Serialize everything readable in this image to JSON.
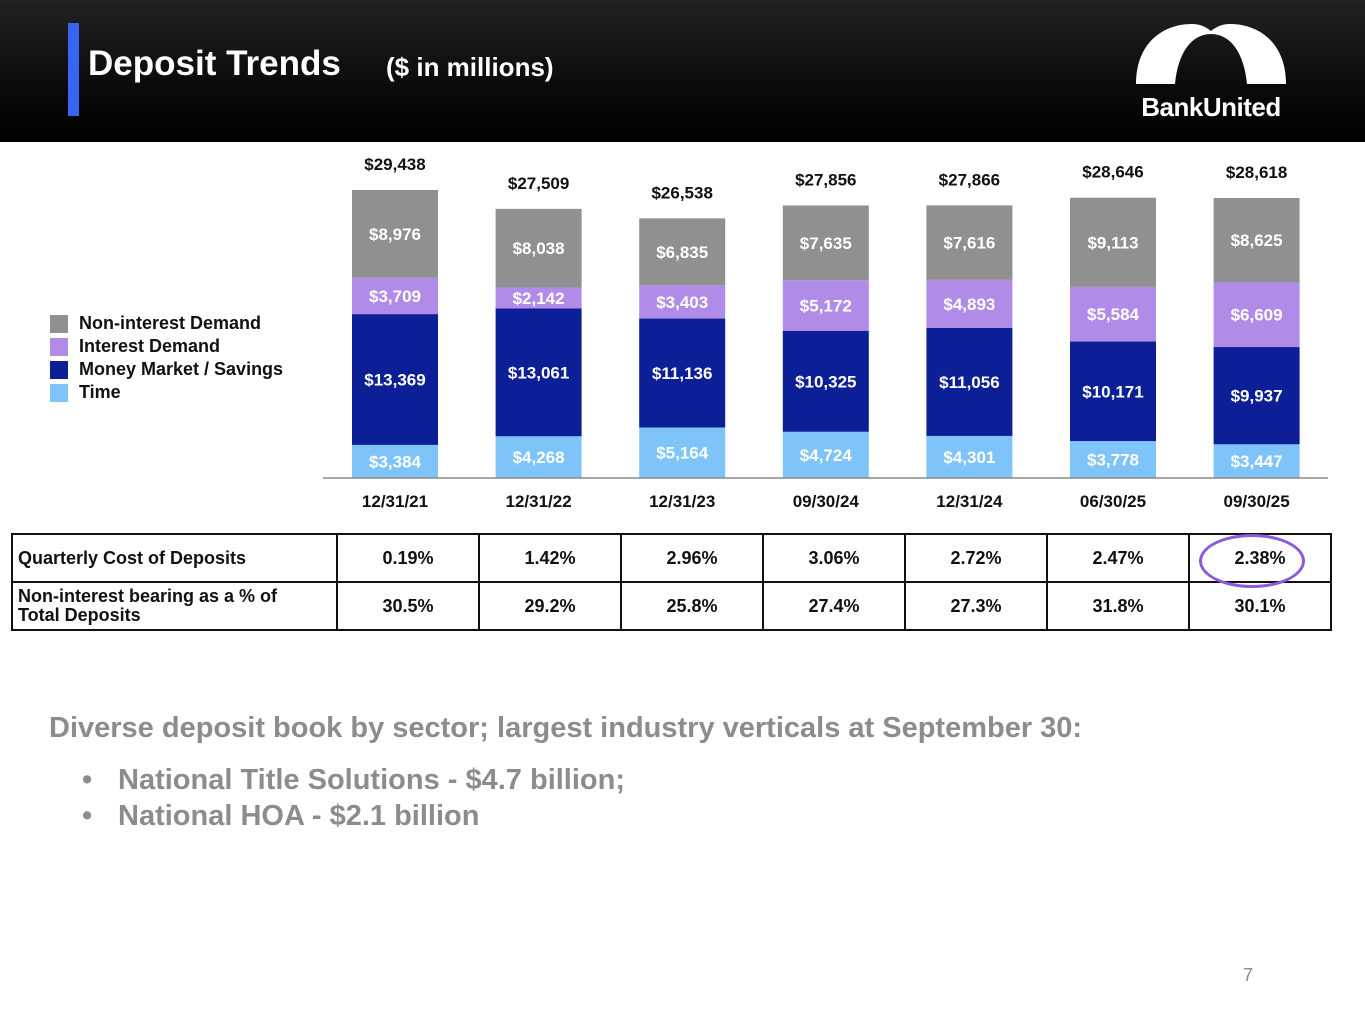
{
  "header": {
    "title": "Deposit Trends",
    "subtitle": "($ in millions)",
    "logo_text": "BankUnited",
    "accent_color": "#3a64f4"
  },
  "legend": [
    {
      "label": "Non-interest Demand",
      "color": "#909090"
    },
    {
      "label": "Interest Demand",
      "color": "#b08ce8"
    },
    {
      "label": "Money Market / Savings",
      "color": "#0c1f96"
    },
    {
      "label": "Time",
      "color": "#7fc4f8"
    }
  ],
  "chart_data": {
    "type": "bar",
    "stacked": true,
    "title": "Deposit Trends ($ in millions)",
    "xlabel": "",
    "ylabel": "",
    "legend_position": "left",
    "grid": false,
    "ylim": [
      0,
      30000
    ],
    "categories": [
      "12/31/21",
      "12/31/22",
      "12/31/23",
      "09/30/24",
      "12/31/24",
      "06/30/25",
      "09/30/25"
    ],
    "totals": [
      29438,
      27509,
      26538,
      27856,
      27866,
      28646,
      28618
    ],
    "total_labels": [
      "$29,438",
      "$27,509",
      "$26,538",
      "$27,856",
      "$27,866",
      "$28,646",
      "$28,618"
    ],
    "series": [
      {
        "name": "Time",
        "color": "#7fc4f8",
        "values": [
          3384,
          4268,
          5164,
          4724,
          4301,
          3778,
          3447
        ],
        "labels": [
          "$3,384",
          "$4,268",
          "$5,164",
          "$4,724",
          "$4,301",
          "$3,778",
          "$3,447"
        ]
      },
      {
        "name": "Money Market / Savings",
        "color": "#0c1f96",
        "values": [
          13369,
          13061,
          11136,
          10325,
          11056,
          10171,
          9937
        ],
        "labels": [
          "$13,369",
          "$13,061",
          "$11,136",
          "$10,325",
          "$11,056",
          "$10,171",
          "$9,937"
        ]
      },
      {
        "name": "Interest Demand",
        "color": "#b08ce8",
        "values": [
          3709,
          2142,
          3403,
          5172,
          4893,
          5584,
          6609
        ],
        "labels": [
          "$3,709",
          "$2,142",
          "$3,403",
          "$5,172",
          "$4,893",
          "$5,584",
          "$6,609"
        ]
      },
      {
        "name": "Non-interest Demand",
        "color": "#909090",
        "values": [
          8976,
          8038,
          6835,
          7635,
          7616,
          9113,
          8625
        ],
        "labels": [
          "$8,976",
          "$8,038",
          "$6,835",
          "$7,635",
          "$7,616",
          "$9,113",
          "$8,625"
        ]
      }
    ]
  },
  "metrics_table": {
    "rows": [
      {
        "label": "Quarterly Cost of Deposits",
        "values": [
          "0.19%",
          "1.42%",
          "2.96%",
          "3.06%",
          "2.72%",
          "2.47%",
          "2.38%"
        ]
      },
      {
        "label_line1": "Non-interest bearing as a % of",
        "label_line2": "Total Deposits",
        "values": [
          "30.5%",
          "29.2%",
          "25.8%",
          "27.4%",
          "27.3%",
          "31.8%",
          "30.1%"
        ]
      }
    ],
    "highlighted_cell": "2.38%",
    "highlight_color": "#8a5cdc"
  },
  "summary": {
    "heading": "Diverse deposit book by sector; largest industry verticals at September 30:",
    "bullets": [
      "National Title Solutions - $4.7 billion;",
      "National HOA - $2.1 billion"
    ],
    "bullet_glyph": "•"
  },
  "page_number": "7"
}
